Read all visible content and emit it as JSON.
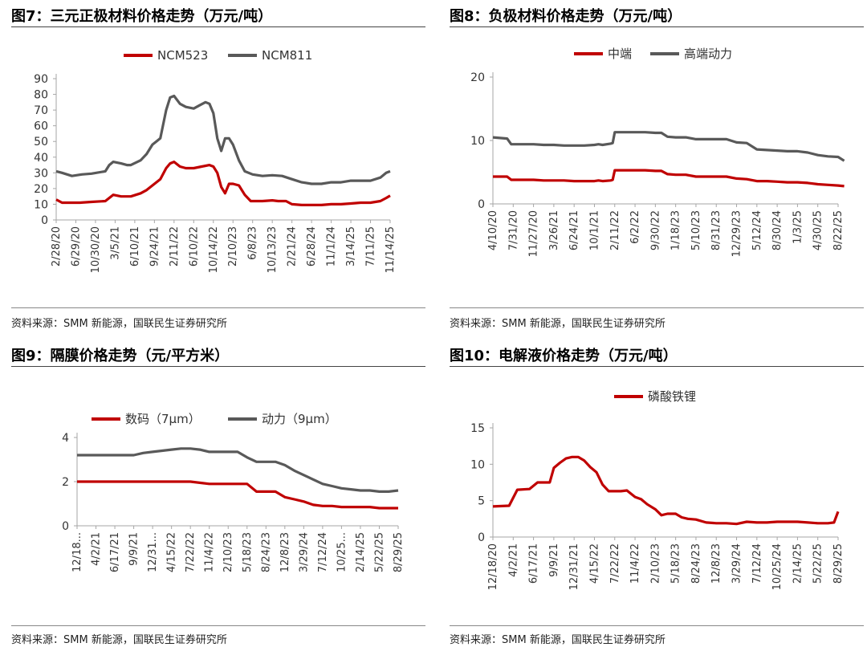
{
  "source_note": "资料来源：SMM 新能源，国联民生证券研究所",
  "chart_data": [
    {
      "id": "p7",
      "type": "line",
      "title": "图7：三元正极材料价格走势（万元/吨）",
      "x_ticks": [
        "2/28/20",
        "6/29/20",
        "10/30/20",
        "3/5/21",
        "6/10/21",
        "9/24/21",
        "2/11/22",
        "6/10/22",
        "10/14/22",
        "2/10/23",
        "6/8/23",
        "10/13/23",
        "2/21/24",
        "6/28/24",
        "11/1/24",
        "3/14/25",
        "7/11/25",
        "11/14/25"
      ],
      "y_ticks": [
        "0",
        "10",
        "20",
        "30",
        "40",
        "50",
        "60",
        "70",
        "80",
        "90"
      ],
      "ylim": [
        0,
        90
      ],
      "legend_position": "top",
      "series": [
        {
          "name": "NCM523",
          "color": "#c00000",
          "x": [
            0,
            0.3,
            0.6,
            1.2,
            1.8,
            2.5,
            2.7,
            2.9,
            3.3,
            3.6,
            3.8,
            4.3,
            4.6,
            4.9,
            5.1,
            5.3,
            5.6,
            5.8,
            6,
            6.3,
            6.6,
            7,
            7.4,
            7.8,
            8,
            8.2,
            8.4,
            8.6,
            8.8,
            9,
            9.3,
            9.6,
            9.9,
            10.5,
            11,
            11.3,
            11.7,
            12,
            12.5,
            13,
            13.5,
            14,
            14.5,
            15,
            15.5,
            16,
            16.5,
            16.8,
            17
          ],
          "y": [
            13,
            11,
            11,
            11,
            11.5,
            12,
            14,
            16,
            15,
            15,
            15,
            17,
            19,
            22,
            24,
            26,
            33,
            36,
            37,
            34,
            33,
            33,
            34,
            35,
            34,
            30,
            21,
            17,
            23,
            23,
            22,
            16,
            12,
            12,
            12.5,
            12,
            12,
            10,
            9.5,
            9.5,
            9.5,
            10,
            10,
            10.5,
            11,
            11,
            12,
            14,
            15.5
          ]
        },
        {
          "name": "NCM811",
          "color": "#595959",
          "x": [
            0,
            0.3,
            0.8,
            1.3,
            1.8,
            2.5,
            2.7,
            2.9,
            3.3,
            3.6,
            3.8,
            4.3,
            4.6,
            4.9,
            5.1,
            5.3,
            5.6,
            5.8,
            6,
            6.3,
            6.6,
            7,
            7.3,
            7.6,
            7.8,
            8,
            8.2,
            8.4,
            8.6,
            8.8,
            9,
            9.3,
            9.6,
            10,
            10.5,
            11,
            11.5,
            12,
            12.5,
            13,
            13.5,
            14,
            14.5,
            15,
            15.5,
            16,
            16.5,
            16.8,
            17
          ],
          "y": [
            31,
            30,
            28,
            29,
            29.5,
            31,
            35,
            37,
            36,
            35,
            35,
            38,
            42,
            48,
            50,
            52,
            70,
            78,
            79,
            74,
            72,
            71,
            73,
            75,
            74,
            68,
            52,
            44,
            52,
            52,
            48,
            38,
            31,
            29,
            28,
            28.5,
            28,
            26,
            24,
            23,
            23,
            24,
            24,
            25,
            25,
            25,
            27,
            30,
            31
          ]
        }
      ]
    },
    {
      "id": "p8",
      "type": "line",
      "title": "图8：负极材料价格走势（万元/吨）",
      "x_ticks": [
        "4/10/20",
        "7/31/20",
        "11/27/20",
        "3/26/21",
        "6/24/21",
        "10/1/21",
        "2/11/22",
        "6/2/22",
        "9/30/22",
        "1/18/23",
        "5/10/23",
        "8/31/23",
        "12/29/23",
        "5/12/24",
        "8/30/24",
        "1/3/25",
        "4/30/25",
        "8/22/25"
      ],
      "y_ticks": [
        "0",
        "10",
        "20"
      ],
      "ylim": [
        0,
        20
      ],
      "legend_position": "top",
      "series": [
        {
          "name": "中端",
          "color": "#c00000",
          "x": [
            0,
            0.7,
            0.9,
            1.5,
            2,
            2.5,
            3,
            3.5,
            4,
            4.5,
            5,
            5.2,
            5.4,
            5.8,
            5.9,
            6,
            6.5,
            7,
            7.5,
            8,
            8.3,
            8.6,
            9,
            9.5,
            10,
            10.5,
            11,
            11.5,
            12,
            12.5,
            13,
            13.5,
            14,
            14.5,
            15,
            15.5,
            16,
            16.5,
            17,
            17.3
          ],
          "y": [
            4.3,
            4.3,
            3.8,
            3.8,
            3.8,
            3.7,
            3.7,
            3.7,
            3.6,
            3.6,
            3.6,
            3.7,
            3.6,
            3.7,
            3.8,
            5.3,
            5.3,
            5.3,
            5.3,
            5.2,
            5.2,
            4.7,
            4.6,
            4.6,
            4.3,
            4.3,
            4.3,
            4.3,
            4.0,
            3.9,
            3.6,
            3.6,
            3.5,
            3.4,
            3.4,
            3.3,
            3.1,
            3.0,
            2.9,
            2.8
          ]
        },
        {
          "name": "高端动力",
          "color": "#595959",
          "x": [
            0,
            0.7,
            0.9,
            1.5,
            2,
            2.5,
            3,
            3.5,
            4,
            4.5,
            5,
            5.2,
            5.4,
            5.8,
            5.9,
            6,
            6.5,
            7,
            7.5,
            8,
            8.3,
            8.6,
            9,
            9.5,
            10,
            10.5,
            11,
            11.5,
            12,
            12.5,
            13,
            13.5,
            14,
            14.5,
            15,
            15.5,
            16,
            16.5,
            17,
            17.3
          ],
          "y": [
            10.5,
            10.3,
            9.4,
            9.4,
            9.4,
            9.3,
            9.3,
            9.2,
            9.2,
            9.2,
            9.3,
            9.4,
            9.3,
            9.5,
            9.6,
            11.3,
            11.3,
            11.3,
            11.3,
            11.2,
            11.2,
            10.6,
            10.5,
            10.5,
            10.2,
            10.2,
            10.2,
            10.2,
            9.7,
            9.6,
            8.6,
            8.5,
            8.4,
            8.3,
            8.3,
            8.1,
            7.7,
            7.5,
            7.4,
            6.8
          ]
        }
      ]
    },
    {
      "id": "p9",
      "type": "line",
      "title": "图9：隔膜价格走势（元/平方米）",
      "x_ticks": [
        "12/18...",
        "4/2/21",
        "6/17/21",
        "9/9/21",
        "12/31...",
        "4/15/22",
        "7/22/22",
        "11/4/22",
        "2/10/23",
        "5/18/23",
        "8/24/23",
        "12/8/23",
        "3/29/24",
        "7/12/24",
        "10/25...",
        "2/14/25",
        "5/22/25",
        "8/29/25"
      ],
      "y_ticks": [
        "0",
        "2",
        "4"
      ],
      "ylim": [
        0,
        4
      ],
      "legend_position": "top",
      "series": [
        {
          "name": "数码（7μm）",
          "color": "#c00000",
          "x": [
            0,
            1,
            2,
            3,
            4,
            5,
            6,
            7,
            8,
            9,
            9.5,
            10,
            10.5,
            11,
            11.5,
            12,
            12.5,
            13,
            13.5,
            14,
            14.5,
            15,
            15.5,
            16,
            16.5,
            17
          ],
          "y": [
            2,
            2,
            2,
            2,
            2,
            2,
            2,
            1.9,
            1.9,
            1.9,
            1.55,
            1.55,
            1.55,
            1.3,
            1.2,
            1.1,
            0.95,
            0.9,
            0.9,
            0.85,
            0.85,
            0.85,
            0.85,
            0.8,
            0.8,
            0.8
          ]
        },
        {
          "name": "动力（9μm）",
          "color": "#595959",
          "x": [
            0,
            1,
            2,
            3,
            3.5,
            4,
            4.5,
            5,
            5.5,
            6,
            6.5,
            7,
            7.5,
            8,
            8.5,
            9,
            9.5,
            10,
            10.5,
            11,
            11.5,
            12,
            12.5,
            13,
            13.5,
            14,
            14.5,
            15,
            15.5,
            16,
            16.5,
            17
          ],
          "y": [
            3.2,
            3.2,
            3.2,
            3.2,
            3.3,
            3.35,
            3.4,
            3.45,
            3.5,
            3.5,
            3.45,
            3.35,
            3.35,
            3.35,
            3.35,
            3.1,
            2.9,
            2.9,
            2.9,
            2.75,
            2.5,
            2.3,
            2.1,
            1.9,
            1.8,
            1.7,
            1.65,
            1.6,
            1.6,
            1.55,
            1.55,
            1.6
          ]
        }
      ]
    },
    {
      "id": "p10",
      "type": "line",
      "title": "图10：电解液价格走势（万元/吨）",
      "x_ticks": [
        "12/18/20",
        "4/2/21",
        "6/17/21",
        "9/9/21",
        "12/31/21",
        "4/15/22",
        "7/22/22",
        "11/4/22",
        "2/10/23",
        "5/18/23",
        "8/24/23",
        "12/8/23",
        "3/29/24",
        "7/12/24",
        "10/25/24",
        "2/14/25",
        "5/22/25",
        "8/29/25"
      ],
      "y_ticks": [
        "0",
        "5",
        "10",
        "15"
      ],
      "ylim": [
        0,
        15
      ],
      "legend_position": "top",
      "series": [
        {
          "name": "磷酸铁锂",
          "color": "#c00000",
          "x": [
            0,
            0.8,
            1.2,
            1.8,
            2.2,
            2.8,
            3,
            3.3,
            3.6,
            3.9,
            4.2,
            4.5,
            4.8,
            5.1,
            5.4,
            5.7,
            6,
            6.3,
            6.6,
            7,
            7.3,
            7.6,
            8,
            8.3,
            8.6,
            9,
            9.3,
            9.6,
            10,
            10.5,
            11,
            11.5,
            12,
            12.5,
            13,
            13.5,
            14,
            14.5,
            15,
            15.5,
            16,
            16.5,
            16.8,
            17
          ],
          "y": [
            4.2,
            4.3,
            6.5,
            6.6,
            7.5,
            7.5,
            9.5,
            10.2,
            10.8,
            11,
            11,
            10.5,
            9.6,
            8.9,
            7.2,
            6.3,
            6.3,
            6.3,
            6.4,
            5.5,
            5.2,
            4.5,
            3.8,
            3.0,
            3.2,
            3.2,
            2.7,
            2.5,
            2.4,
            2.0,
            1.9,
            1.9,
            1.8,
            2.1,
            2.0,
            2.0,
            2.1,
            2.1,
            2.1,
            2.0,
            1.9,
            1.9,
            2.0,
            3.5
          ]
        }
      ]
    }
  ]
}
